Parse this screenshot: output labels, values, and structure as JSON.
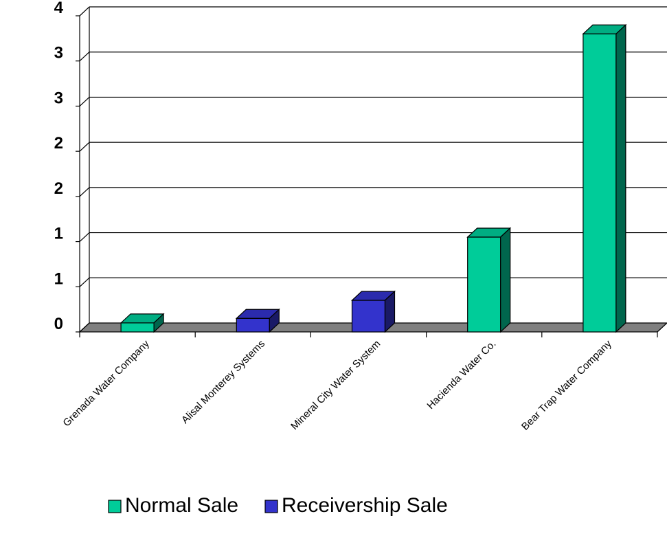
{
  "chart_data": {
    "type": "bar",
    "title": "",
    "xlabel": "",
    "ylabel": "",
    "categories": [
      "Grenada Water Company",
      "Alisal Monterey Systems",
      "Mineral City Water System",
      "Hacienda Water Co.",
      "Bear Trap Water Company"
    ],
    "y_tick_labels": [
      "0",
      "1",
      "1",
      "2",
      "2",
      "3",
      "3",
      "4"
    ],
    "ylim": [
      0,
      3.5
    ],
    "grid": true,
    "legend_position": "bottom",
    "series": [
      {
        "name": "Normal Sale",
        "color": "#00cc99",
        "values": [
          0.1,
          null,
          null,
          1.05,
          3.3
        ]
      },
      {
        "name": "Receivership Sale",
        "color": "#3333cc",
        "values": [
          null,
          0.15,
          0.35,
          null,
          null
        ]
      }
    ]
  }
}
